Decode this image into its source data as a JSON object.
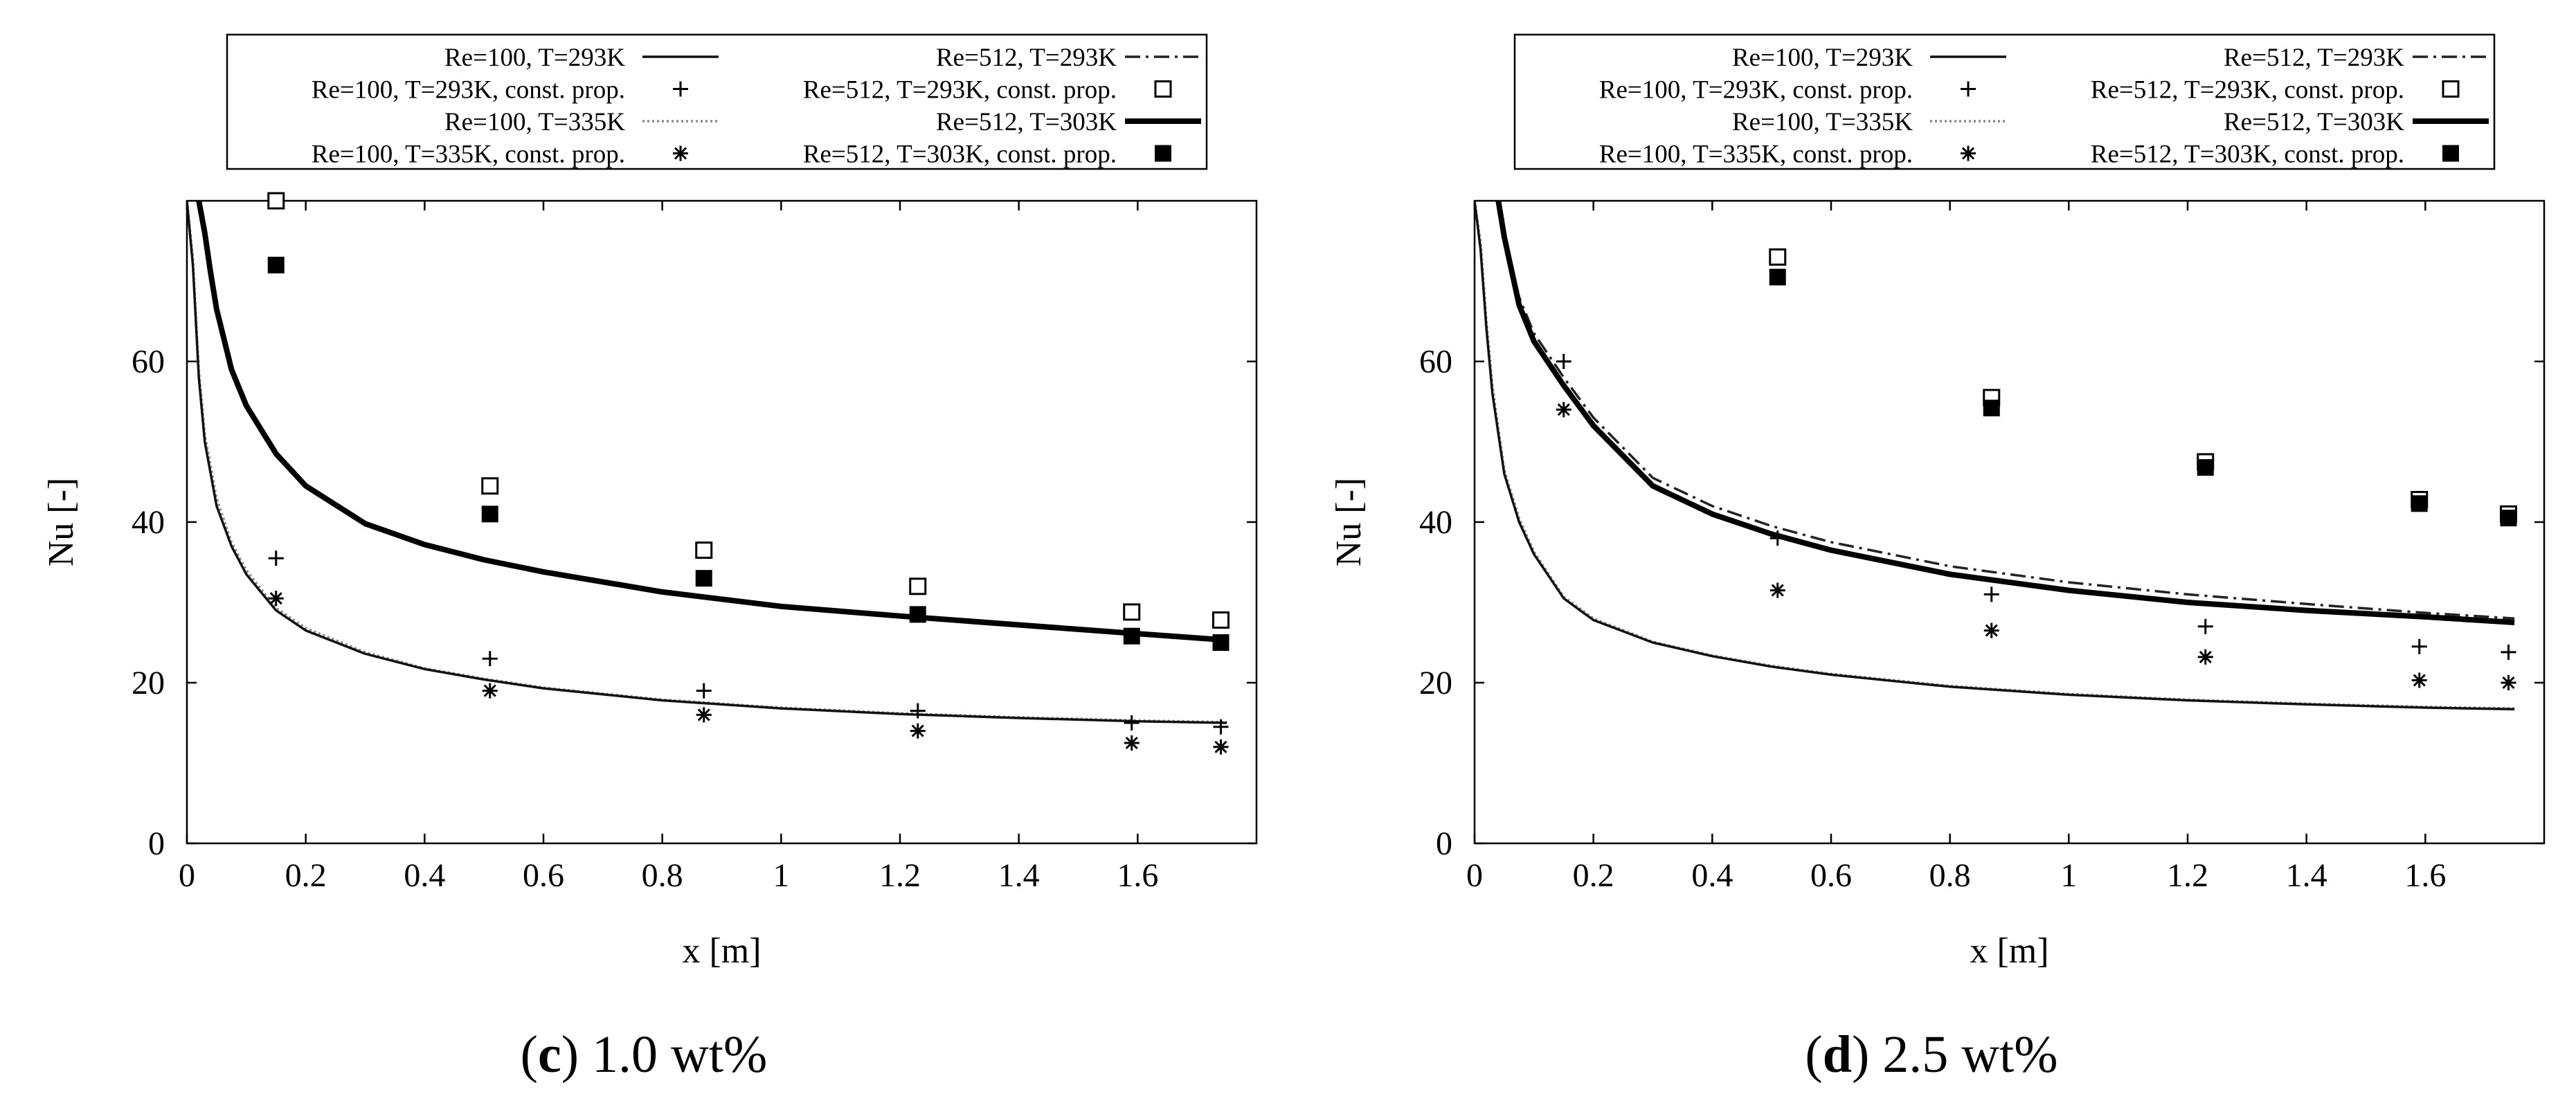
{
  "chart_data": [
    {
      "type": "line",
      "panel_letter": "c",
      "caption_text": "1.0 wt%",
      "xlabel": "x [m]",
      "ylabel": "Nu [-]",
      "xlim": [
        0,
        1.8
      ],
      "ylim": [
        0,
        80
      ],
      "xticks": [
        0,
        0.2,
        0.4,
        0.6,
        0.8,
        1,
        1.2,
        1.4,
        1.6
      ],
      "yticks": [
        0,
        20,
        40,
        60
      ],
      "xtick_labels": [
        "0",
        "0.2",
        "0.4",
        "0.6",
        "0.8",
        "1",
        "1.2",
        "1.4",
        "1.6"
      ],
      "ytick_labels": [
        "0",
        "20",
        "40",
        "60"
      ],
      "legend": [
        {
          "label": "Re=100, T=293K",
          "style": "solid"
        },
        {
          "label": "Re=100, T=293K, const. prop.",
          "style": "plus"
        },
        {
          "label": "Re=100, T=335K",
          "style": "dotted"
        },
        {
          "label": "Re=100, T=335K, const. prop.",
          "style": "star"
        },
        {
          "label": "Re=512, T=293K",
          "style": "dashdot"
        },
        {
          "label": "Re=512, T=293K, const. prop.",
          "style": "open-square"
        },
        {
          "label": "Re=512, T=303K",
          "style": "thick"
        },
        {
          "label": "Re=512, T=303K, const. prop.",
          "style": "filled-square"
        }
      ],
      "series": [
        {
          "name": "Re=100, T=293K",
          "kind": "line",
          "style": "solid",
          "x": [
            0.0,
            0.01,
            0.02,
            0.03,
            0.05,
            0.075,
            0.1,
            0.15,
            0.2,
            0.3,
            0.4,
            0.5,
            0.6,
            0.8,
            1.0,
            1.2,
            1.4,
            1.6,
            1.75
          ],
          "y": [
            80,
            72,
            58,
            50,
            42,
            37,
            33.5,
            29,
            26.5,
            23.6,
            21.7,
            20.4,
            19.3,
            17.8,
            16.8,
            16.1,
            15.6,
            15.2,
            15.0
          ]
        },
        {
          "name": "Re=100, T=335K",
          "kind": "line",
          "style": "dotted",
          "x": [
            0.0,
            0.01,
            0.02,
            0.03,
            0.05,
            0.075,
            0.1,
            0.15,
            0.2,
            0.3,
            0.4,
            0.5,
            0.6,
            0.8,
            1.0,
            1.2,
            1.4,
            1.6,
            1.75
          ],
          "y": [
            80,
            73,
            59,
            51,
            43,
            37.5,
            34,
            29.3,
            26.8,
            23.8,
            21.8,
            20.5,
            19.4,
            17.9,
            16.9,
            16.2,
            15.7,
            15.3,
            15.1
          ]
        },
        {
          "name": "Re=512, T=293K",
          "kind": "line",
          "style": "dashdot",
          "x": [
            0.02,
            0.03,
            0.04,
            0.05,
            0.075,
            0.1,
            0.15,
            0.2,
            0.3,
            0.4,
            0.5,
            0.6,
            0.8,
            1.0,
            1.2,
            1.4,
            1.6,
            1.75
          ],
          "y": [
            80,
            76,
            71,
            66.5,
            59,
            54.5,
            48.5,
            44.5,
            39.8,
            37.2,
            35.3,
            33.8,
            31.3,
            29.5,
            28.3,
            27.2,
            26.1,
            25.3
          ]
        },
        {
          "name": "Re=512, T=303K",
          "kind": "line",
          "style": "thick",
          "x": [
            0.02,
            0.03,
            0.04,
            0.05,
            0.075,
            0.1,
            0.15,
            0.2,
            0.3,
            0.4,
            0.5,
            0.6,
            0.8,
            1.0,
            1.2,
            1.4,
            1.6,
            1.75
          ],
          "y": [
            80,
            76,
            71,
            66.5,
            59,
            54.5,
            48.5,
            44.5,
            39.8,
            37.2,
            35.3,
            33.8,
            31.3,
            29.5,
            28.3,
            27.2,
            26.1,
            25.3
          ]
        },
        {
          "name": "Re=100, T=293K, const. prop.",
          "kind": "marker",
          "style": "plus",
          "x": [
            0.15,
            0.51,
            0.87,
            1.23,
            1.59,
            1.74
          ],
          "y": [
            35.5,
            23,
            19,
            16.5,
            15,
            14.5
          ]
        },
        {
          "name": "Re=100, T=335K, const. prop.",
          "kind": "marker",
          "style": "star",
          "x": [
            0.15,
            0.51,
            0.87,
            1.23,
            1.59,
            1.74
          ],
          "y": [
            30.5,
            19,
            16,
            14,
            12.5,
            12
          ]
        },
        {
          "name": "Re=512, T=293K, const. prop.",
          "kind": "marker",
          "style": "open-square",
          "x": [
            0.15,
            0.51,
            0.87,
            1.23,
            1.59,
            1.74
          ],
          "y": [
            80,
            44.5,
            36.5,
            32,
            28.8,
            27.8
          ]
        },
        {
          "name": "Re=512, T=303K, const. prop.",
          "kind": "marker",
          "style": "filled-square",
          "x": [
            0.15,
            0.51,
            0.87,
            1.23,
            1.59,
            1.74
          ],
          "y": [
            72,
            41,
            33,
            28.5,
            25.8,
            25
          ]
        }
      ]
    },
    {
      "type": "line",
      "panel_letter": "d",
      "caption_text": "2.5 wt%",
      "xlabel": "x [m]",
      "ylabel": "Nu [-]",
      "xlim": [
        0,
        1.8
      ],
      "ylim": [
        0,
        80
      ],
      "xticks": [
        0,
        0.2,
        0.4,
        0.6,
        0.8,
        1,
        1.2,
        1.4,
        1.6
      ],
      "yticks": [
        0,
        20,
        40,
        60
      ],
      "xtick_labels": [
        "0",
        "0.2",
        "0.4",
        "0.6",
        "0.8",
        "1",
        "1.2",
        "1.4",
        "1.6"
      ],
      "ytick_labels": [
        "0",
        "20",
        "40",
        "60"
      ],
      "legend": [
        {
          "label": "Re=100, T=293K",
          "style": "solid"
        },
        {
          "label": "Re=100, T=293K, const. prop.",
          "style": "plus"
        },
        {
          "label": "Re=100, T=335K",
          "style": "dotted"
        },
        {
          "label": "Re=100, T=335K, const. prop.",
          "style": "star"
        },
        {
          "label": "Re=512, T=293K",
          "style": "dashdot"
        },
        {
          "label": "Re=512, T=293K, const. prop.",
          "style": "open-square"
        },
        {
          "label": "Re=512, T=303K",
          "style": "thick"
        },
        {
          "label": "Re=512, T=303K, const. prop.",
          "style": "filled-square"
        }
      ],
      "series": [
        {
          "name": "Re=100, T=293K",
          "kind": "line",
          "style": "solid",
          "x": [
            0.0,
            0.01,
            0.02,
            0.03,
            0.05,
            0.075,
            0.1,
            0.15,
            0.2,
            0.3,
            0.4,
            0.5,
            0.6,
            0.8,
            1.0,
            1.2,
            1.4,
            1.6,
            1.75
          ],
          "y": [
            80,
            74,
            64,
            56,
            46,
            40,
            36,
            30.5,
            27.8,
            25,
            23.3,
            22,
            21,
            19.5,
            18.5,
            17.8,
            17.3,
            16.9,
            16.7
          ]
        },
        {
          "name": "Re=100, T=335K",
          "kind": "line",
          "style": "dotted",
          "x": [
            0.0,
            0.01,
            0.02,
            0.03,
            0.05,
            0.075,
            0.1,
            0.15,
            0.2,
            0.3,
            0.4,
            0.5,
            0.6,
            0.8,
            1.0,
            1.2,
            1.4,
            1.6,
            1.75
          ],
          "y": [
            80,
            75,
            65,
            57,
            46.5,
            40.5,
            36.3,
            30.7,
            28,
            25.1,
            23.4,
            22.1,
            21.1,
            19.6,
            18.6,
            17.9,
            17.4,
            17,
            16.8
          ]
        },
        {
          "name": "Re=512, T=293K",
          "kind": "line",
          "style": "dashdot",
          "x": [
            0.04,
            0.05,
            0.075,
            0.1,
            0.15,
            0.2,
            0.3,
            0.4,
            0.5,
            0.6,
            0.8,
            1.0,
            1.2,
            1.4,
            1.6,
            1.75
          ],
          "y": [
            80,
            76,
            68,
            63.5,
            58,
            53,
            45.5,
            42,
            39.5,
            37.5,
            34.5,
            32.5,
            31,
            29.8,
            28.7,
            28
          ]
        },
        {
          "name": "Re=512, T=303K",
          "kind": "line",
          "style": "thick",
          "x": [
            0.04,
            0.05,
            0.075,
            0.1,
            0.15,
            0.2,
            0.3,
            0.4,
            0.5,
            0.6,
            0.8,
            1.0,
            1.2,
            1.4,
            1.6,
            1.75
          ],
          "y": [
            80,
            75.5,
            67,
            62.5,
            57,
            52,
            44.5,
            41,
            38.5,
            36.5,
            33.5,
            31.5,
            30,
            29,
            28.2,
            27.5
          ]
        },
        {
          "name": "Re=100, T=293K, const. prop.",
          "kind": "marker",
          "style": "plus",
          "x": [
            0.15,
            0.51,
            0.87,
            1.23,
            1.59,
            1.74
          ],
          "y": [
            60,
            38,
            31,
            27,
            24.5,
            23.8
          ]
        },
        {
          "name": "Re=100, T=335K, const. prop.",
          "kind": "marker",
          "style": "star",
          "x": [
            0.15,
            0.51,
            0.87,
            1.23,
            1.59,
            1.74
          ],
          "y": [
            54,
            31.5,
            26.5,
            23.2,
            20.3,
            20
          ]
        },
        {
          "name": "Re=512, T=293K, const. prop.",
          "kind": "marker",
          "style": "open-square",
          "x": [
            0.51,
            0.87,
            1.23,
            1.59,
            1.74
          ],
          "y": [
            73,
            55.5,
            47.5,
            42.8,
            41
          ]
        },
        {
          "name": "Re=512, T=303K, const. prop.",
          "kind": "marker",
          "style": "filled-square",
          "x": [
            0.51,
            0.87,
            1.23,
            1.59,
            1.74
          ],
          "y": [
            70.5,
            54.2,
            46.8,
            42.3,
            40.5
          ]
        }
      ]
    }
  ]
}
